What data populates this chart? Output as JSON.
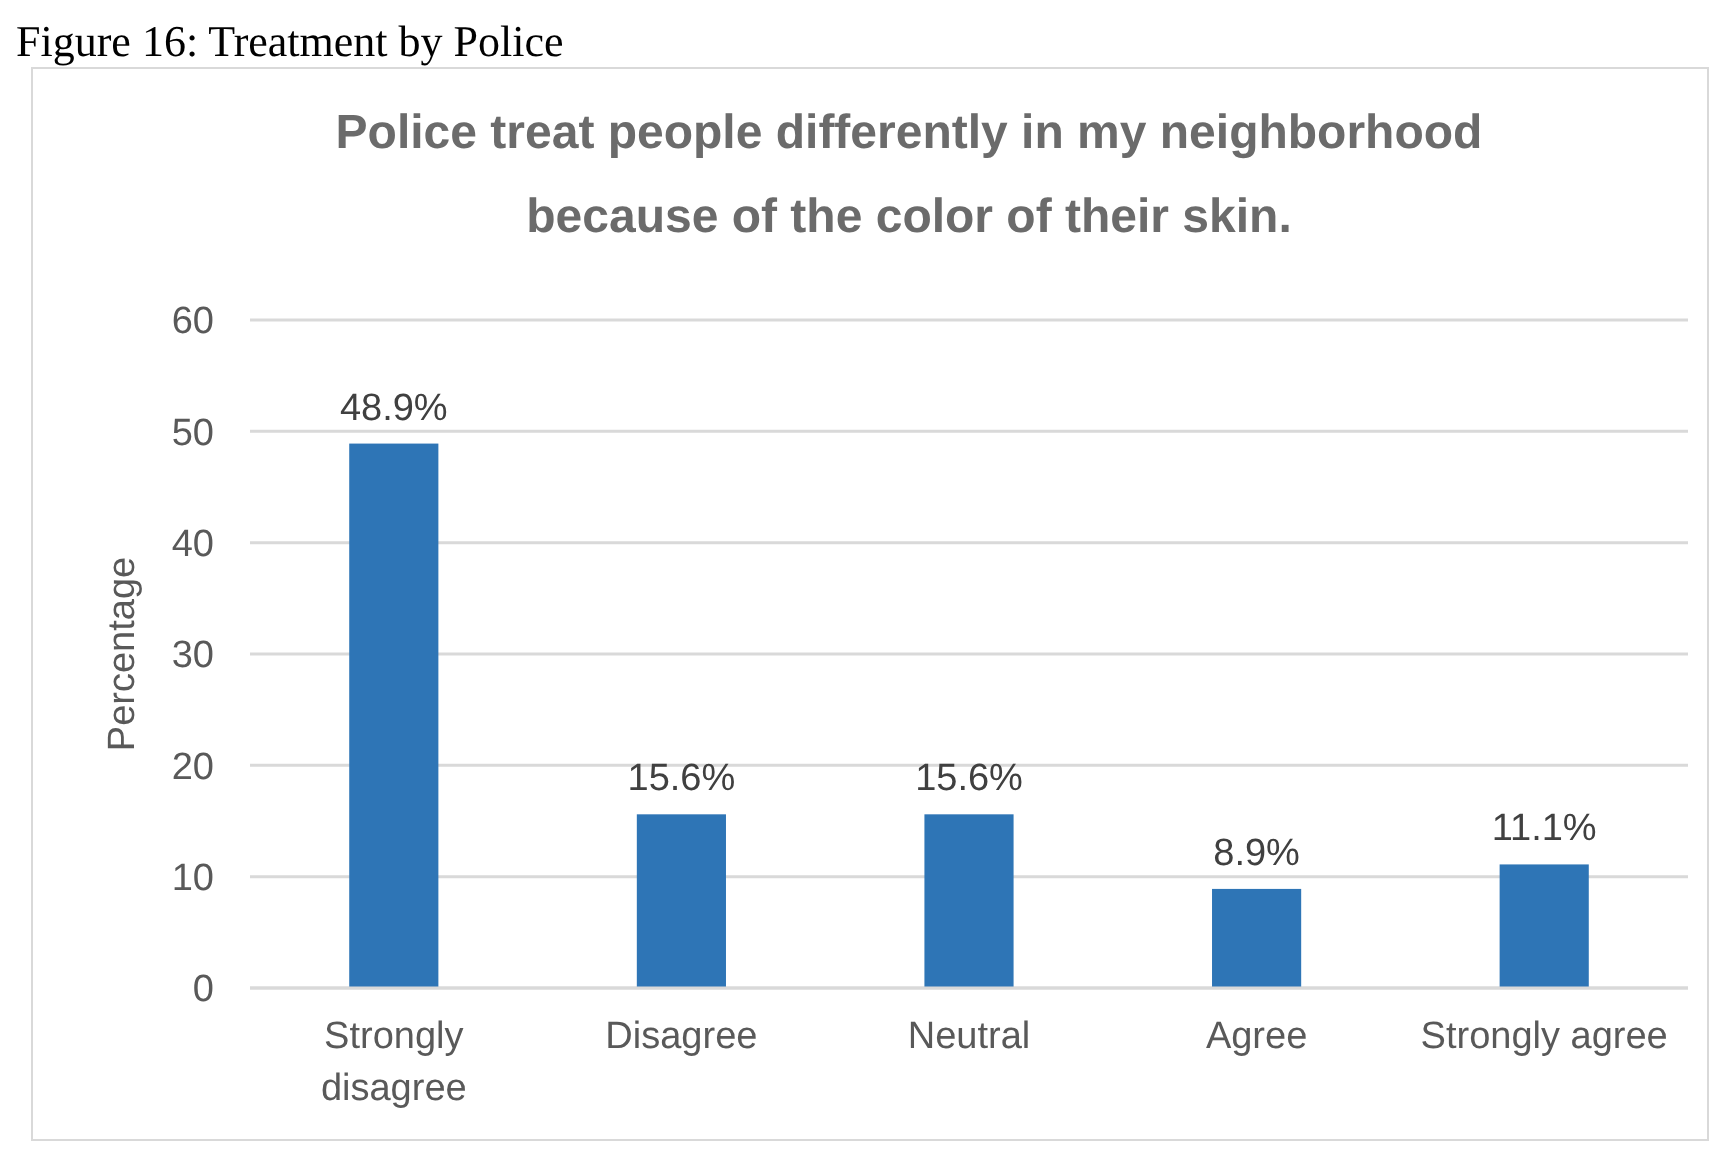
{
  "chart_data": {
    "type": "bar",
    "title": "Police treat people differently in my neighborhood because of the color of their skin.",
    "ylabel": "Percentage",
    "annotations": [
      "Figure 16: Treatment by Police"
    ],
    "categories": [
      "Strongly disagree",
      "Disagree",
      "Neutral",
      "Agree",
      "Strongly agree"
    ],
    "values": [
      48.9,
      15.6,
      15.6,
      8.9,
      11.1
    ],
    "value_labels": [
      "48.9%",
      "15.6%",
      "15.6%",
      "8.9%",
      "11.1%"
    ],
    "color": "#2e75b6",
    "ylim": [
      0,
      60
    ],
    "yticks": [
      0,
      10,
      20,
      30,
      40,
      50,
      60
    ],
    "grid": "y"
  }
}
